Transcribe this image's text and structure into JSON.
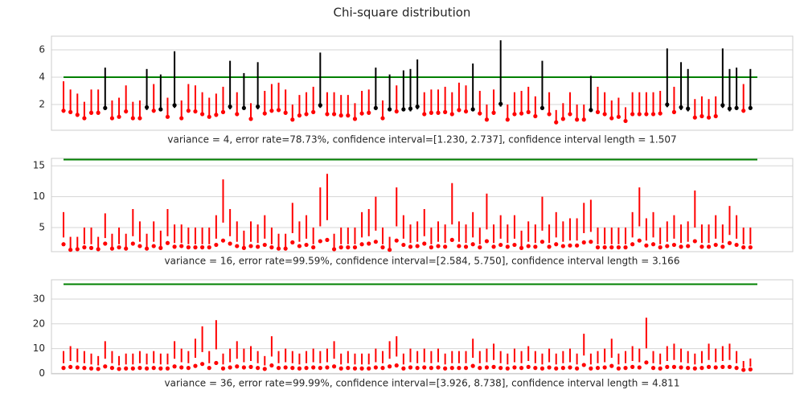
{
  "title": "Chi-square distribution",
  "chart_data": [
    {
      "type": "errorbar",
      "xlabel": "variance = 4, error rate=78.73%, confidence interval=[1.230, 2.737], confidence interval length = 1.507",
      "xlim": [
        -1.74,
        105.1
      ],
      "ylim": [
        0.12,
        7.0
      ],
      "yticks": [
        2,
        4,
        6
      ],
      "grid": true,
      "hit_color": "black",
      "miss_color": "red",
      "reference": {
        "value": 4,
        "color": "green",
        "xmin": 0,
        "xmax": 100
      },
      "values": [
        1.55,
        1.45,
        1.25,
        1.0,
        1.4,
        1.4,
        1.75,
        1.0,
        1.1,
        1.5,
        1.0,
        1.0,
        1.8,
        1.55,
        1.65,
        1.1,
        1.95,
        1.0,
        1.55,
        1.5,
        1.3,
        1.1,
        1.25,
        1.45,
        1.85,
        1.3,
        1.75,
        0.95,
        1.85,
        1.35,
        1.55,
        1.6,
        1.4,
        0.9,
        1.2,
        1.3,
        1.45,
        1.95,
        1.3,
        1.3,
        1.2,
        1.2,
        0.95,
        1.35,
        1.4,
        1.75,
        1.0,
        1.65,
        1.5,
        1.65,
        1.7,
        1.85,
        1.3,
        1.4,
        1.4,
        1.45,
        1.3,
        1.6,
        1.5,
        1.65,
        1.35,
        0.9,
        1.4,
        2.05,
        0.9,
        1.3,
        1.35,
        1.45,
        1.15,
        1.75,
        1.3,
        0.7,
        0.95,
        1.3,
        0.9,
        0.9,
        1.6,
        1.45,
        1.3,
        1.0,
        1.1,
        0.8,
        1.3,
        1.3,
        1.3,
        1.3,
        1.35,
        2.0,
        1.45,
        1.8,
        1.7,
        1.05,
        1.15,
        1.05,
        1.15,
        1.95,
        1.7,
        1.75,
        1.55,
        1.75
      ],
      "lower": [
        1.4,
        1.3,
        1.1,
        0.9,
        1.25,
        1.25,
        1.6,
        0.9,
        1.0,
        1.35,
        0.9,
        0.9,
        1.6,
        1.4,
        1.5,
        1.0,
        1.75,
        0.9,
        1.4,
        1.35,
        1.15,
        1.0,
        1.1,
        1.3,
        1.65,
        1.15,
        1.6,
        0.85,
        1.65,
        1.2,
        1.4,
        1.45,
        1.25,
        0.8,
        1.1,
        1.15,
        1.3,
        1.75,
        1.15,
        1.15,
        1.1,
        1.1,
        0.85,
        1.2,
        1.25,
        1.6,
        0.9,
        1.5,
        1.35,
        1.5,
        1.5,
        1.65,
        1.15,
        1.25,
        1.25,
        1.3,
        1.15,
        1.45,
        1.35,
        1.5,
        1.2,
        0.8,
        1.25,
        1.85,
        0.8,
        1.15,
        1.2,
        1.3,
        1.05,
        1.6,
        1.15,
        0.65,
        0.85,
        1.15,
        0.8,
        0.8,
        1.45,
        1.3,
        1.15,
        0.9,
        1.0,
        0.7,
        1.15,
        1.15,
        1.15,
        1.15,
        1.2,
        1.8,
        1.3,
        1.6,
        1.5,
        0.95,
        1.05,
        0.95,
        1.05,
        1.75,
        1.5,
        1.6,
        1.4,
        1.6
      ],
      "upper": [
        3.7,
        3.1,
        2.8,
        2.2,
        3.1,
        3.1,
        4.7,
        2.3,
        2.5,
        3.4,
        2.2,
        2.3,
        4.6,
        3.5,
        4.2,
        2.5,
        5.9,
        2.3,
        3.5,
        3.4,
        2.9,
        2.5,
        2.8,
        3.3,
        5.2,
        2.9,
        4.3,
        2.1,
        5.1,
        3.0,
        3.5,
        3.6,
        3.1,
        2.0,
        2.7,
        2.9,
        3.3,
        5.8,
        2.9,
        2.9,
        2.7,
        2.7,
        2.1,
        3.0,
        3.1,
        4.7,
        2.3,
        4.2,
        3.4,
        4.5,
        4.6,
        5.3,
        2.9,
        3.1,
        3.1,
        3.3,
        2.9,
        3.6,
        3.4,
        5.0,
        3.0,
        2.0,
        3.1,
        6.7,
        2.0,
        2.9,
        3.0,
        3.3,
        2.6,
        5.2,
        2.9,
        1.6,
        2.1,
        2.9,
        2.0,
        2.0,
        4.1,
        3.3,
        2.9,
        2.3,
        2.5,
        1.8,
        2.9,
        2.9,
        2.9,
        2.9,
        3.0,
        6.1,
        3.3,
        5.1,
        4.6,
        2.4,
        2.6,
        2.4,
        2.6,
        6.1,
        4.6,
        4.7,
        3.5,
        4.6
      ]
    },
    {
      "type": "errorbar",
      "xlabel": "variance = 16, error rate=99.59%, confidence interval=[2.584, 5.750], confidence interval length = 3.166",
      "xlim": [
        -1.74,
        105.1
      ],
      "ylim": [
        1.1,
        16.2
      ],
      "yticks": [
        5,
        10,
        15
      ],
      "grid": true,
      "hit_color": "black",
      "miss_color": "red",
      "reference": {
        "value": 16,
        "color": "green",
        "xmin": 0,
        "xmax": 100
      },
      "values": [
        2.3,
        1.4,
        1.5,
        1.8,
        1.7,
        1.5,
        2.4,
        1.6,
        1.8,
        1.6,
        2.4,
        2.0,
        1.6,
        2.0,
        1.7,
        2.5,
        1.9,
        2.0,
        1.8,
        1.8,
        1.8,
        1.8,
        2.2,
        2.9,
        2.4,
        2.0,
        1.7,
        2.0,
        1.9,
        2.2,
        1.8,
        1.6,
        1.6,
        2.6,
        2.0,
        2.2,
        1.8,
        2.8,
        3.0,
        1.5,
        1.8,
        1.8,
        1.8,
        2.3,
        2.4,
        2.7,
        1.8,
        1.4,
        2.9,
        2.2,
        1.9,
        2.0,
        2.4,
        1.8,
        2.0,
        1.9,
        3.0,
        2.0,
        1.9,
        2.3,
        1.8,
        2.8,
        1.9,
        2.2,
        1.9,
        2.2,
        1.7,
        2.0,
        1.9,
        2.7,
        1.9,
        2.3,
        2.0,
        2.1,
        2.1,
        2.6,
        2.7,
        1.8,
        1.8,
        1.8,
        1.8,
        1.8,
        2.3,
        2.9,
        2.1,
        2.3,
        1.8,
        2.0,
        2.2,
        1.9,
        2.0,
        2.8,
        1.9,
        1.9,
        2.2,
        1.9,
        2.5,
        2.2,
        1.8,
        1.8
      ],
      "lower": [
        3.4,
        1.6,
        1.6,
        2.3,
        2.3,
        1.6,
        3.3,
        1.8,
        2.3,
        1.8,
        3.6,
        2.7,
        1.8,
        2.7,
        2.0,
        3.6,
        2.5,
        2.5,
        2.3,
        2.3,
        2.3,
        2.3,
        3.2,
        5.8,
        3.6,
        2.7,
        2.0,
        2.7,
        2.5,
        3.2,
        2.3,
        1.8,
        1.8,
        4.1,
        2.7,
        3.2,
        2.3,
        5.2,
        6.2,
        1.8,
        2.3,
        2.3,
        2.3,
        3.4,
        3.6,
        4.5,
        2.3,
        1.6,
        5.2,
        3.2,
        2.5,
        2.7,
        3.6,
        2.3,
        2.7,
        2.5,
        5.5,
        2.7,
        2.5,
        3.4,
        2.3,
        4.7,
        2.5,
        3.2,
        2.5,
        3.2,
        2.0,
        2.7,
        2.5,
        4.5,
        2.5,
        3.4,
        2.7,
        2.9,
        2.9,
        4.1,
        4.3,
        2.3,
        2.3,
        2.3,
        2.3,
        2.3,
        3.4,
        5.2,
        2.9,
        3.4,
        2.3,
        2.7,
        3.2,
        2.5,
        2.7,
        5.0,
        2.5,
        2.5,
        3.2,
        2.5,
        3.8,
        3.2,
        2.3,
        2.3
      ],
      "upper": [
        7.5,
        3.5,
        3.5,
        5.0,
        5.0,
        3.5,
        7.3,
        4.0,
        5.0,
        4.0,
        8.0,
        6.0,
        4.0,
        6.0,
        4.5,
        8.0,
        5.5,
        5.5,
        5.0,
        5.0,
        5.0,
        5.0,
        7.0,
        12.8,
        8.0,
        6.0,
        4.5,
        6.0,
        5.5,
        7.0,
        5.0,
        4.0,
        4.0,
        9.0,
        6.0,
        7.0,
        5.0,
        11.5,
        13.7,
        4.0,
        5.0,
        5.0,
        5.0,
        7.5,
        8.0,
        10.0,
        5.0,
        3.5,
        11.5,
        7.0,
        5.5,
        6.0,
        8.0,
        5.0,
        6.0,
        5.5,
        12.2,
        6.0,
        5.5,
        7.5,
        5.0,
        10.5,
        5.5,
        7.0,
        5.5,
        7.0,
        4.5,
        6.0,
        5.5,
        10.0,
        5.5,
        7.5,
        6.0,
        6.5,
        6.5,
        9.0,
        9.5,
        5.0,
        5.0,
        5.0,
        5.0,
        5.0,
        7.5,
        11.5,
        6.5,
        7.5,
        5.0,
        6.0,
        7.0,
        5.5,
        6.0,
        11.0,
        5.5,
        5.5,
        7.0,
        5.5,
        8.5,
        7.0,
        5.0,
        5.0
      ]
    },
    {
      "type": "errorbar",
      "xlabel": "variance = 36, error rate=99.99%, confidence interval=[3.926, 8.738], confidence interval length = 4.811",
      "xlim": [
        -1.74,
        105.1
      ],
      "ylim": [
        -0.2,
        37.8
      ],
      "yticks": [
        0,
        10,
        20,
        30
      ],
      "grid": true,
      "hit_color": "black",
      "miss_color": "red",
      "reference": {
        "value": 36,
        "color": "green",
        "xmin": 0,
        "xmax": 100
      },
      "values": [
        2.2,
        2.6,
        2.4,
        2.2,
        2.0,
        1.8,
        2.8,
        2.2,
        1.8,
        2.0,
        2.0,
        2.2,
        2.0,
        2.2,
        2.0,
        2.0,
        2.8,
        2.4,
        2.2,
        3.0,
        3.8,
        2.2,
        4.2,
        2.0,
        2.4,
        2.8,
        2.4,
        2.6,
        2.2,
        1.8,
        3.2,
        2.2,
        2.4,
        2.2,
        2.0,
        2.2,
        2.4,
        2.2,
        2.4,
        2.8,
        2.0,
        2.2,
        2.0,
        2.0,
        2.0,
        2.4,
        2.2,
        2.8,
        3.2,
        2.0,
        2.4,
        2.2,
        2.4,
        2.2,
        2.4,
        2.0,
        2.2,
        2.2,
        2.2,
        3.0,
        2.2,
        2.4,
        2.6,
        2.2,
        2.0,
        2.4,
        2.2,
        2.6,
        2.2,
        2.0,
        2.4,
        2.0,
        2.2,
        2.4,
        2.0,
        3.4,
        2.0,
        2.2,
        2.4,
        3.0,
        2.0,
        2.2,
        2.6,
        2.4,
        4.4,
        2.2,
        2.0,
        2.6,
        2.6,
        2.4,
        2.2,
        2.0,
        2.2,
        2.6,
        2.4,
        2.6,
        2.6,
        2.2,
        1.4,
        1.6
      ],
      "lower": [
        4.1,
        5.0,
        4.5,
        4.1,
        3.6,
        3.2,
        5.9,
        4.1,
        3.2,
        3.6,
        3.6,
        4.1,
        3.6,
        4.1,
        3.6,
        3.6,
        5.9,
        4.5,
        4.1,
        6.3,
        8.6,
        4.1,
        9.7,
        3.6,
        4.5,
        5.9,
        4.5,
        5.0,
        4.1,
        3.2,
        6.8,
        4.1,
        4.5,
        4.1,
        3.6,
        4.1,
        4.5,
        4.1,
        4.5,
        5.9,
        3.6,
        4.1,
        3.6,
        3.6,
        3.6,
        4.5,
        4.1,
        5.9,
        6.8,
        3.6,
        4.5,
        4.1,
        4.5,
        4.1,
        4.5,
        3.6,
        4.1,
        4.1,
        4.1,
        6.3,
        4.1,
        4.5,
        5.4,
        4.1,
        3.6,
        4.5,
        4.1,
        5.0,
        4.1,
        3.6,
        4.5,
        3.6,
        4.1,
        4.5,
        3.6,
        7.2,
        3.6,
        4.1,
        4.5,
        6.3,
        3.6,
        4.1,
        5.0,
        4.5,
        10.1,
        4.1,
        3.6,
        5.0,
        5.4,
        4.5,
        4.1,
        3.6,
        4.1,
        5.4,
        4.5,
        5.0,
        5.4,
        4.1,
        2.3,
        2.7
      ],
      "upper": [
        9,
        11,
        10,
        9,
        8,
        7,
        13,
        9,
        7,
        8,
        8,
        9,
        8,
        9,
        8,
        8,
        13,
        10,
        9,
        14,
        19,
        9,
        21.5,
        8,
        10,
        13,
        10,
        11,
        9,
        7,
        15,
        9,
        10,
        9,
        8,
        9,
        10,
        9,
        10,
        13,
        8,
        9,
        8,
        8,
        8,
        10,
        9,
        13,
        15,
        8,
        10,
        9,
        10,
        9,
        10,
        8,
        9,
        9,
        9,
        14,
        9,
        10,
        12,
        9,
        8,
        10,
        9,
        11,
        9,
        8,
        10,
        8,
        9,
        10,
        8,
        16,
        8,
        9,
        10,
        14,
        8,
        9,
        11,
        10,
        22.5,
        9,
        8,
        11,
        12,
        10,
        9,
        8,
        9,
        12,
        10,
        11,
        12,
        9,
        5,
        6
      ]
    }
  ]
}
